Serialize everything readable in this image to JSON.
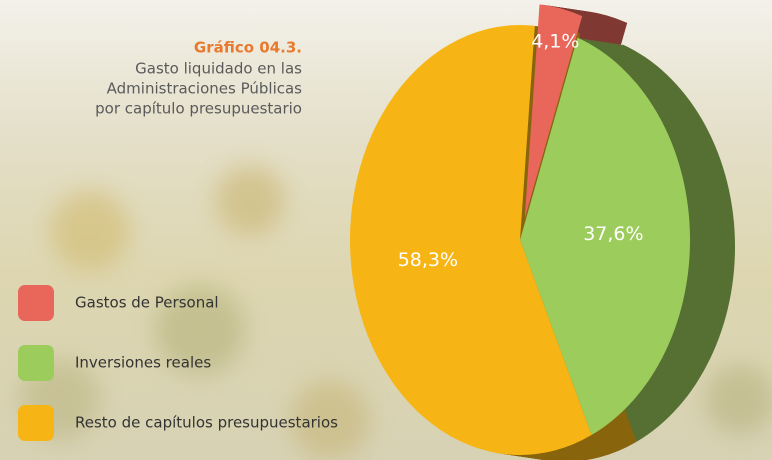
{
  "chart_data": {
    "type": "pie",
    "title": "Gráfico 04.3.",
    "subtitle": [
      "Gasto liquidado en las",
      "Administraciones Públicas",
      "por capítulo presupuestario"
    ],
    "categories": [
      "Gastos de Personal",
      "Inversiones reales",
      "Resto de capítulos presupuestarios"
    ],
    "values": [
      4.1,
      37.6,
      58.3
    ],
    "value_labels": [
      "4,1%",
      "37,6%",
      "58,3%"
    ],
    "colors": [
      "#e8675a",
      "#9ccc5c",
      "#f7b515"
    ],
    "legend": "bottom-left"
  }
}
